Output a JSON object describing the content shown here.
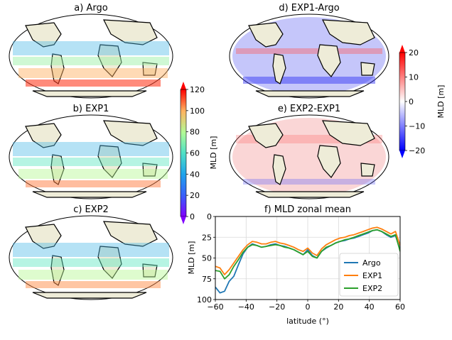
{
  "maps": [
    {
      "id": "a",
      "title": "a) Argo"
    },
    {
      "id": "b",
      "title": "b) EXP1"
    },
    {
      "id": "c",
      "title": "c) EXP2"
    },
    {
      "id": "d",
      "title": "d) EXP1-Argo"
    },
    {
      "id": "e",
      "title": "e) EXP2-EXP1"
    }
  ],
  "colorbar_mld": {
    "label": "MLD [m]",
    "ticks": [
      "0",
      "20",
      "40",
      "60",
      "80",
      "100",
      "120"
    ],
    "range": [
      0,
      120
    ],
    "colormap": "rainbow"
  },
  "colorbar_diff": {
    "label": "MLD [m]",
    "ticks": [
      "−20",
      "−10",
      "0",
      "10",
      "20"
    ],
    "range": [
      -20,
      20
    ],
    "colormap": "bwr"
  },
  "chart_data": {
    "type": "line",
    "title": "f) MLD zonal mean",
    "xlabel": "latitude (°)",
    "ylabel": "MLD [m]",
    "xlim": [
      -60,
      60
    ],
    "ylim": [
      100,
      0
    ],
    "y_inverted": true,
    "xticks": [
      "−60",
      "−40",
      "−20",
      "0",
      "20",
      "40",
      "60"
    ],
    "yticks": [
      "0",
      "25",
      "50",
      "75",
      "100"
    ],
    "grid": true,
    "legend_position": "lower-right",
    "x": [
      -60,
      -57,
      -54,
      -51,
      -48,
      -45,
      -42,
      -39,
      -36,
      -33,
      -30,
      -27,
      -24,
      -21,
      -18,
      -15,
      -12,
      -9,
      -6,
      -3,
      0,
      3,
      6,
      9,
      12,
      15,
      18,
      21,
      24,
      27,
      30,
      33,
      36,
      39,
      42,
      45,
      48,
      51,
      54,
      57,
      60
    ],
    "series": [
      {
        "name": "Argo",
        "color": "#1f77b4",
        "values": [
          85,
          92,
          90,
          78,
          72,
          58,
          45,
          37,
          33,
          35,
          37,
          36,
          34,
          33,
          35,
          36,
          38,
          40,
          43,
          46,
          40,
          47,
          50,
          42,
          38,
          35,
          32,
          30,
          29,
          27,
          26,
          24,
          22,
          20,
          17,
          16,
          18,
          22,
          25,
          23,
          40
        ]
      },
      {
        "name": "EXP1",
        "color": "#ff7f0e",
        "values": [
          60,
          62,
          70,
          64,
          56,
          48,
          40,
          34,
          30,
          31,
          33,
          33,
          31,
          30,
          32,
          33,
          35,
          37,
          40,
          42,
          38,
          44,
          47,
          39,
          34,
          31,
          28,
          26,
          25,
          23,
          22,
          20,
          18,
          16,
          14,
          13,
          15,
          18,
          21,
          18,
          35
        ]
      },
      {
        "name": "EXP2",
        "color": "#2ca02c",
        "values": [
          65,
          66,
          75,
          70,
          60,
          52,
          43,
          37,
          34,
          35,
          37,
          36,
          35,
          34,
          35,
          37,
          38,
          40,
          43,
          46,
          42,
          48,
          50,
          42,
          37,
          35,
          32,
          30,
          28,
          27,
          25,
          23,
          21,
          19,
          17,
          16,
          18,
          21,
          24,
          22,
          42
        ]
      }
    ]
  }
}
